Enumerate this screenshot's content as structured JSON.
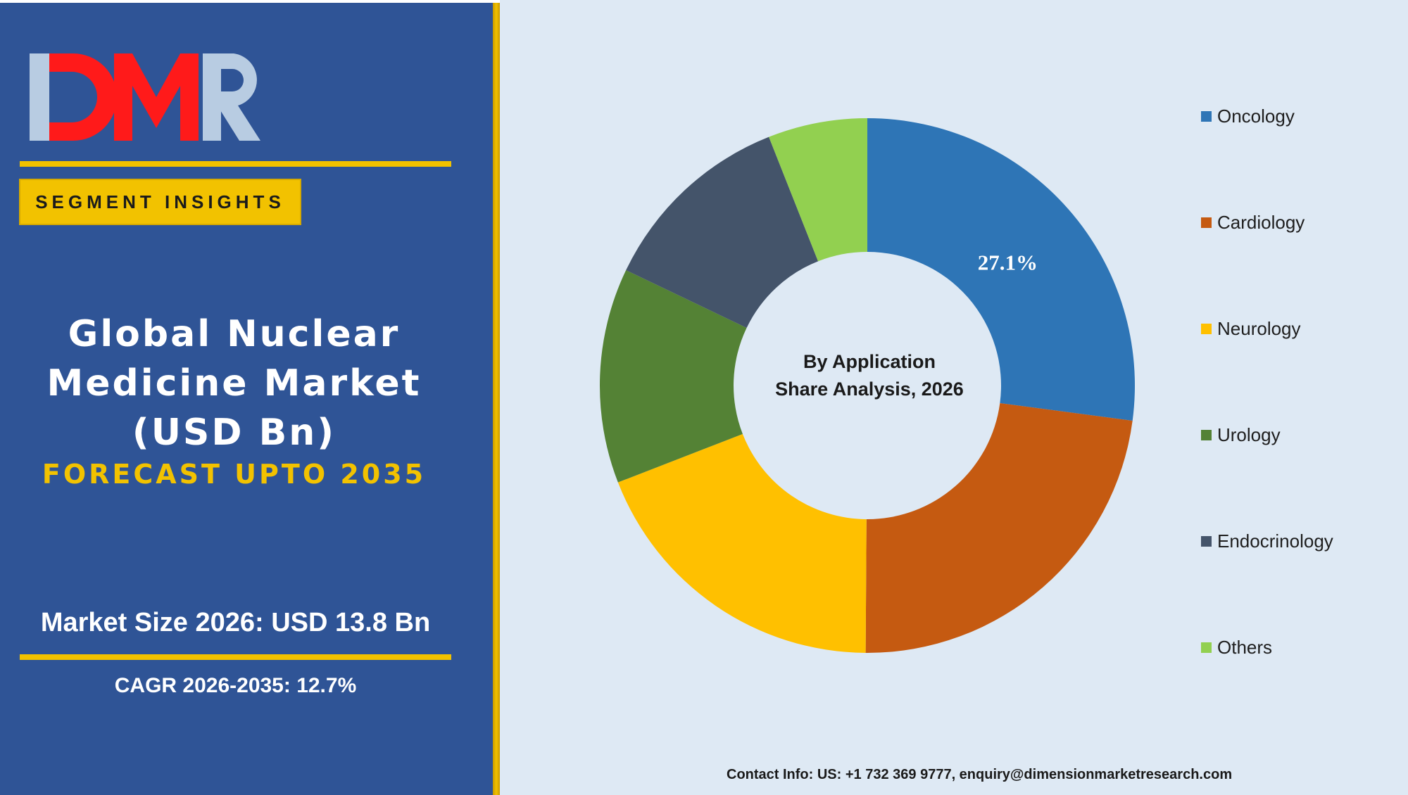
{
  "brand": {
    "logo_text": "DMR",
    "badge": "SEGMENT INSIGHTS"
  },
  "title": {
    "line1": "Global Nuclear",
    "line2": "Medicine Market",
    "line3": "(USD Bn)",
    "forecast": "FORECAST UPTO 2035"
  },
  "stats": {
    "market_size": "Market Size 2026: USD 13.8 Bn",
    "cagr": "CAGR 2026-2035: 12.7%"
  },
  "footer": {
    "contact": "Contact Info: US: +1 732 369 9777, enquiry@dimensionmarketresearch.com"
  },
  "colors": {
    "panel": "#2F5496",
    "accent": "#F2C200",
    "background": "#DEE9F4"
  },
  "chart_data": {
    "type": "pie",
    "style": "donut",
    "center_text": [
      "By Application",
      "Share Analysis, 2026"
    ],
    "categories": [
      "Oncology",
      "Cardiology",
      "Neurology",
      "Urology",
      "Endocrinology",
      "Others"
    ],
    "values": [
      27.1,
      23.0,
      19.0,
      13.0,
      11.9,
      6.0
    ],
    "colors": [
      "#2E75B6",
      "#C55A11",
      "#FFC000",
      "#548235",
      "#44546A",
      "#92D050"
    ],
    "data_labels": [
      "27.1%",
      "",
      "",
      "",
      "",
      ""
    ],
    "legend_position": "right"
  }
}
